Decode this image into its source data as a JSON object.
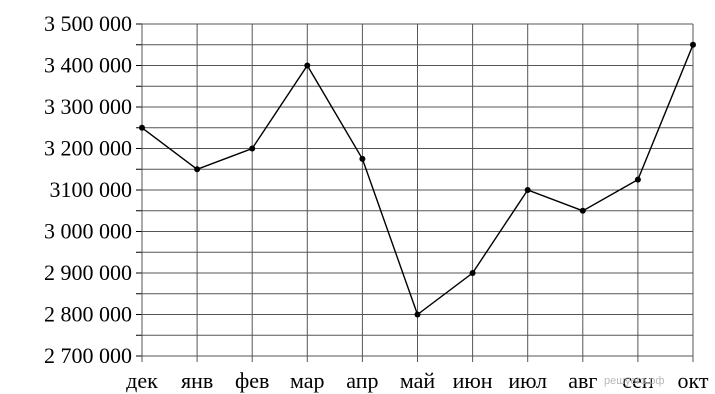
{
  "chart_data": {
    "type": "line",
    "categories": [
      "дек",
      "янв",
      "фев",
      "мар",
      "апр",
      "май",
      "июн",
      "июл",
      "авг",
      "сен",
      "окт"
    ],
    "series": [
      {
        "values": [
          3250000,
          3150000,
          3200000,
          3400000,
          3175000,
          2800000,
          2900000,
          3100000,
          3050000,
          3125000,
          3450000
        ]
      }
    ],
    "y_tick_labels": [
      "2 700 000",
      "2 800 000",
      "2 900 000",
      "3 000 000",
      "3100 000",
      "3 200 000",
      "3 300 000",
      "3 400 000",
      "3 500 000"
    ],
    "y_ticks": [
      2700000,
      2800000,
      2900000,
      3000000,
      3100000,
      3200000,
      3300000,
      3400000,
      3500000
    ],
    "ylim": [
      2700000,
      3500000
    ],
    "grid": true,
    "minor_grid_step": 50000,
    "title": "",
    "xlabel": "",
    "ylabel": "",
    "line_color": "#000000",
    "grid_color": "#555555"
  },
  "watermark": "решуегэ.рф"
}
